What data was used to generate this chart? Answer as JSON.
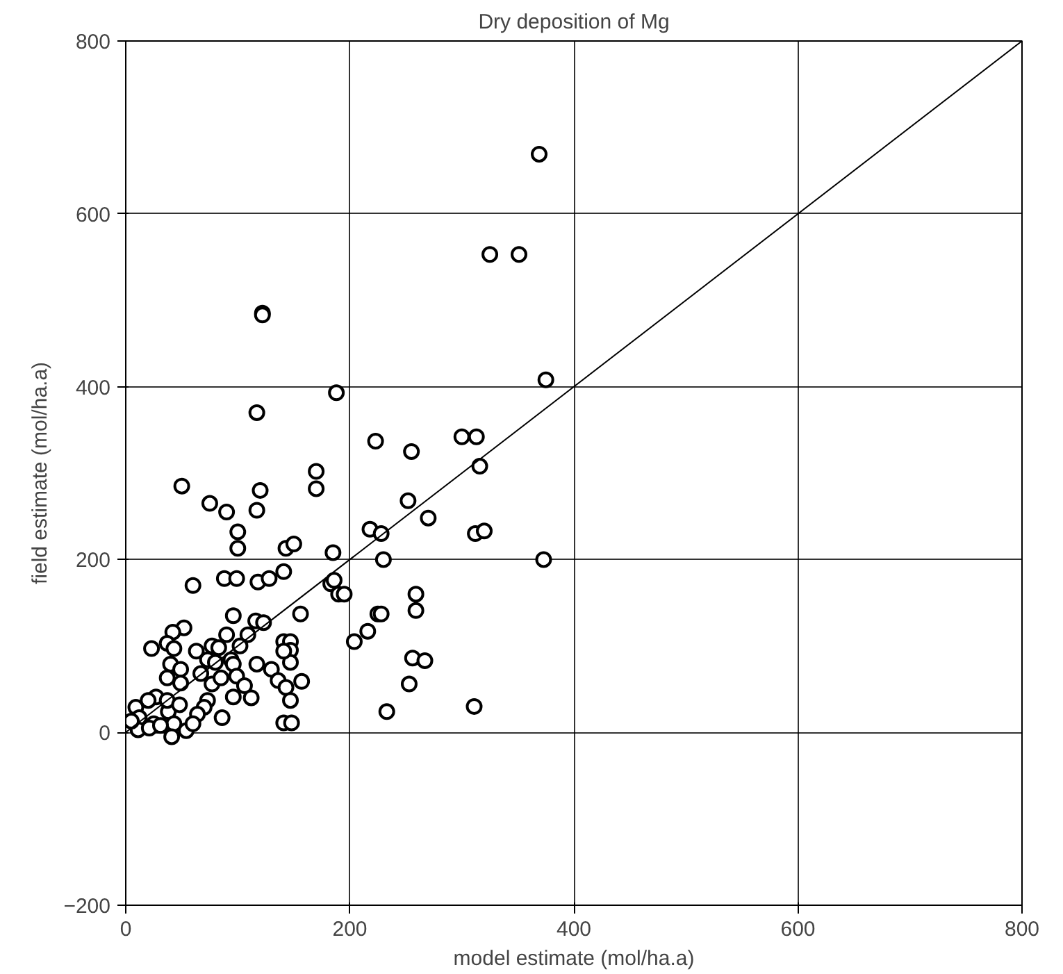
{
  "chart_data": {
    "type": "scatter",
    "title": "Dry deposition of Mg",
    "xlabel": "model estimate (mol/ha.a)",
    "ylabel": "field estimate (mol/ha.a)",
    "xlim": [
      0,
      800
    ],
    "ylim": [
      -200,
      800
    ],
    "xticks": [
      0,
      200,
      400,
      600,
      800
    ],
    "yticks": [
      -200,
      0,
      200,
      400,
      600,
      800
    ],
    "grid": true,
    "marker": "circle",
    "series": [
      {
        "color": "#000000",
        "x": [
          369,
          325,
          351,
          375,
          373,
          122,
          122,
          188,
          117,
          313,
          300,
          223,
          255,
          316,
          170,
          170,
          120,
          50,
          117,
          75,
          90,
          252,
          218,
          228,
          312,
          320,
          270,
          100,
          100,
          143,
          150,
          185,
          183,
          190,
          230,
          225,
          204,
          216,
          228,
          233,
          311,
          256,
          267,
          253,
          259,
          259,
          60,
          88,
          99,
          118,
          128,
          141,
          186,
          195,
          156,
          96,
          116,
          123,
          52,
          42,
          23,
          37,
          43,
          63,
          77,
          83,
          90,
          102,
          109,
          141,
          147,
          147,
          147,
          141,
          40,
          49,
          73,
          80,
          94,
          96,
          117,
          130,
          136,
          143,
          157,
          147,
          37,
          49,
          67,
          77,
          85,
          99,
          106,
          96,
          112,
          73,
          70,
          64,
          86,
          141,
          148,
          27,
          20,
          9,
          12,
          11,
          25,
          38,
          37,
          48,
          43,
          41,
          54,
          60,
          21,
          31,
          5
        ],
        "values": [
          669,
          553,
          553,
          408,
          200,
          485,
          483,
          393,
          370,
          342,
          342,
          337,
          325,
          308,
          302,
          282,
          280,
          285,
          257,
          265,
          255,
          268,
          235,
          230,
          230,
          233,
          248,
          232,
          213,
          213,
          218,
          208,
          172,
          160,
          200,
          137,
          105,
          117,
          137,
          24,
          30,
          86,
          83,
          56,
          160,
          141,
          170,
          178,
          178,
          174,
          178,
          186,
          176,
          160,
          137,
          135,
          129,
          127,
          121,
          116,
          97,
          103,
          97,
          94,
          100,
          98,
          113,
          100,
          113,
          105,
          105,
          95,
          81,
          94,
          79,
          73,
          84,
          81,
          84,
          79,
          79,
          73,
          60,
          52,
          59,
          37,
          63,
          57,
          68,
          56,
          63,
          65,
          54,
          41,
          40,
          37,
          29,
          21,
          17,
          11,
          11,
          41,
          37,
          29,
          17,
          3,
          10,
          24,
          37,
          32,
          10,
          -5,
          2,
          10,
          5,
          8,
          13
        ]
      },
      {
        "type": "line",
        "marker": "none",
        "color": "#000000",
        "x": [
          0,
          800
        ],
        "values": [
          0,
          800
        ]
      }
    ]
  }
}
